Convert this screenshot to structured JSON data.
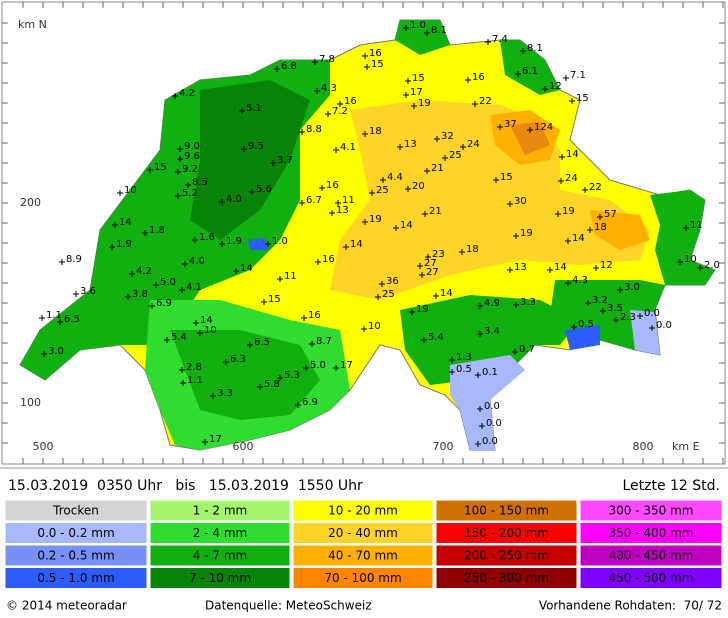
{
  "map": {
    "axis_labels": {
      "north": "km N",
      "east": "km E"
    },
    "x_ticks": [
      "500",
      "600",
      "700",
      "800"
    ],
    "y_ticks": [
      "200",
      "100"
    ],
    "stations": [
      "1.0",
      "8.1",
      "7.4",
      "8.1",
      "7.8",
      "16",
      "15",
      "6.8",
      "6.1",
      "7.1",
      "16",
      "15",
      "12",
      "4.2",
      "4.3",
      "17",
      "15",
      "16",
      "19",
      "22",
      "5.1",
      "7.2",
      "37",
      "124",
      "8.8",
      "18",
      "32",
      "9.5",
      "9.0",
      "13",
      "24",
      "25",
      "9.6",
      "3.7",
      "14",
      "15",
      "9.2",
      "21",
      "4.1",
      "8.5",
      "15",
      "24",
      "4.4",
      "16",
      "10",
      "5.2",
      "5.6",
      "20",
      "22",
      "25",
      "4.0",
      "6.7",
      "11",
      "30",
      "57",
      "13",
      "21",
      "19",
      "14",
      "19",
      "14",
      "18",
      "11",
      "1.8",
      "1.6",
      "1.9",
      "1.0",
      "14",
      "19",
      "14",
      "1.9",
      "18",
      "23",
      "27",
      "27",
      "16",
      "8.9",
      "4.0",
      "14",
      "10",
      "2.0",
      "13",
      "12",
      "4.2",
      "11",
      "14",
      "4.3",
      "36",
      "5.0",
      "4.1",
      "3.0",
      "3.6",
      "3.8",
      "25",
      "14",
      "6.9",
      "15",
      "4.9",
      "3.3",
      "3.2",
      "3.5",
      "0.0",
      "14",
      "1.1",
      "16",
      "19",
      "2.3",
      "6.5",
      "0.0",
      "0.5",
      "10",
      "3.4",
      "10",
      "5.4",
      "5.4",
      "6.5",
      "8.7",
      "0.7",
      "3.0",
      "1.3",
      "6.3",
      "17",
      "5.0",
      "2.8",
      "0.1",
      "0.5",
      "5.3",
      "1.1",
      "5.8",
      "3.3",
      "6.9",
      "0.0",
      "0.0",
      "0.0",
      "17"
    ]
  },
  "header": {
    "period": "15.03.2019  0350 Uhr   bis   15.03.2019  1550 Uhr",
    "window": "Letzte 12 Std."
  },
  "legend": {
    "items": [
      {
        "label": "Trocken",
        "color": "#d4d4d4"
      },
      {
        "label": "0.0 - 0.2 mm",
        "color": "#a8b8fc"
      },
      {
        "label": "0.2 - 0.5 mm",
        "color": "#7890f4"
      },
      {
        "label": "0.5 - 1.0 mm",
        "color": "#2c5cfc"
      },
      {
        "label": "1 - 2 mm",
        "color": "#a4f470"
      },
      {
        "label": "2 - 4 mm",
        "color": "#30dc30"
      },
      {
        "label": "4 - 7 mm",
        "color": "#10b010"
      },
      {
        "label": "7 - 10 mm",
        "color": "#088408"
      },
      {
        "label": "10 - 20 mm",
        "color": "#ffff00"
      },
      {
        "label": "20 - 40 mm",
        "color": "#ffd428"
      },
      {
        "label": "40 - 70 mm",
        "color": "#ffb000"
      },
      {
        "label": "70 - 100 mm",
        "color": "#ff8400"
      },
      {
        "label": "100 - 150 mm",
        "color": "#d07000"
      },
      {
        "label": "150 - 200 mm",
        "color": "#ff0000"
      },
      {
        "label": "200 - 250 mm",
        "color": "#c40000"
      },
      {
        "label": "250 - 300 mm",
        "color": "#900000"
      },
      {
        "label": "300 - 350 mm",
        "color": "#ff48ff"
      },
      {
        "label": "350 - 400 mm",
        "color": "#ff00ff"
      },
      {
        "label": "400 - 450 mm",
        "color": "#c000c0"
      },
      {
        "label": "450 - 500 mm",
        "color": "#8000ff"
      }
    ]
  },
  "footer": {
    "copyright": "© 2014 meteoradar",
    "source": "Datenquelle: MeteoSchweiz",
    "raw_data": "Vorhandene Rohdaten:  70/ 72"
  }
}
